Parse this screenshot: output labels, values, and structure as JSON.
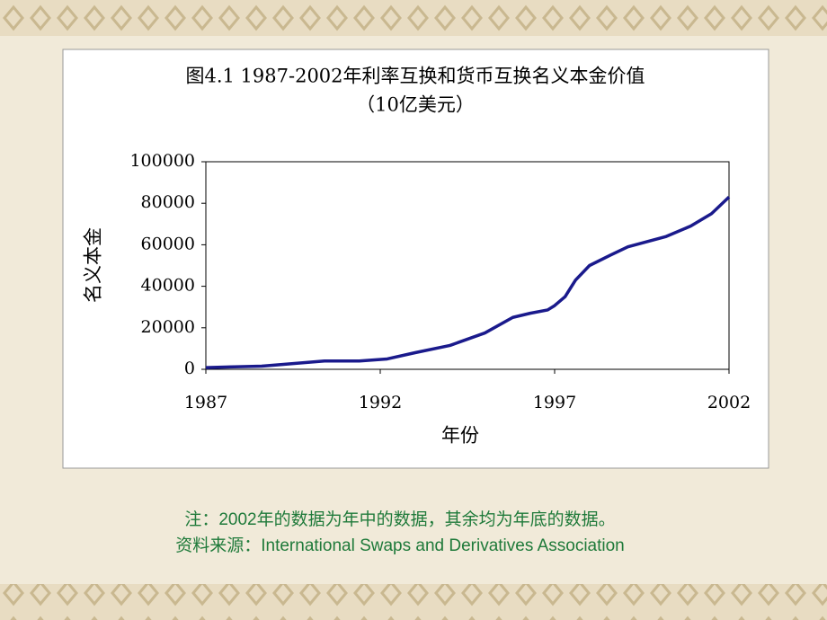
{
  "chart_data": {
    "type": "line",
    "title": "图4.1 1987-2002年利率互换和货币互换名义本金价值",
    "subtitle": "（10亿美元）",
    "x_label": "年份",
    "y_label": "名义本金",
    "x": [
      1987,
      1987.8,
      1988.6,
      1990.4,
      1991.4,
      1992.2,
      1993,
      1994,
      1995,
      1995.8,
      1996.3,
      1996.8,
      1997,
      1997.3,
      1997.6,
      1998,
      1998.6,
      1999.1,
      2000.2,
      2000.9,
      2001.5,
      2002
    ],
    "series": [
      {
        "name": "名义本金",
        "color": "#1a1a8c",
        "values": [
          800,
          1200,
          1500,
          4000,
          4000,
          5000,
          8000,
          11500,
          17500,
          25000,
          27000,
          28600,
          30700,
          35000,
          43000,
          50000,
          55000,
          59000,
          64000,
          69000,
          75000,
          83000
        ]
      }
    ],
    "xlim": [
      1987,
      2002
    ],
    "xticks": [
      1987,
      1992,
      1997,
      2002
    ],
    "ylim": [
      0,
      100000
    ],
    "yticks": [
      0,
      20000,
      40000,
      60000,
      80000,
      100000
    ]
  },
  "notes": [
    "注：2002年的数据为年中的数据，其余均为年底的数据。",
    "资料来源：International Swaps and Derivatives Association"
  ]
}
